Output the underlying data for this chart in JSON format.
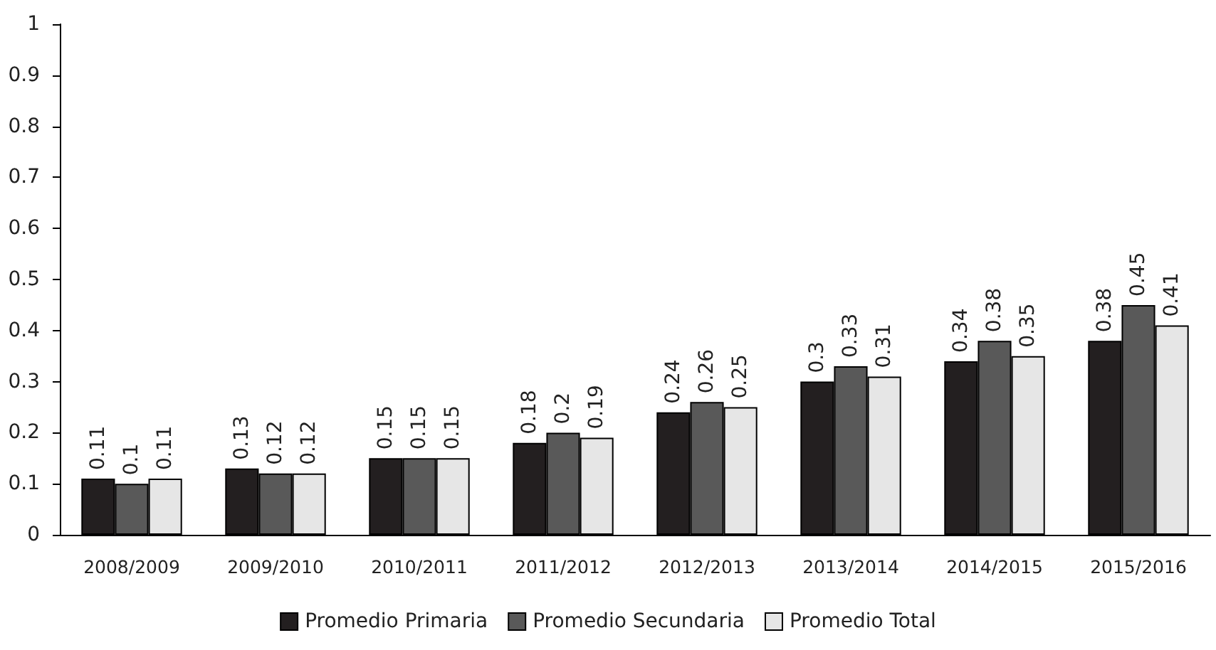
{
  "chart_data": {
    "type": "bar",
    "categories": [
      "2008/2009",
      "2009/2010",
      "2010/2011",
      "2011/2012",
      "2012/2013",
      "2013/2014",
      "2014/2015",
      "2015/2016"
    ],
    "series": [
      {
        "name": "Promedio Primaria",
        "color": "#231f20",
        "values": [
          0.11,
          0.13,
          0.15,
          0.18,
          0.24,
          0.3,
          0.34,
          0.38
        ]
      },
      {
        "name": "Promedio Secundaria",
        "color": "#595959",
        "values": [
          0.1,
          0.12,
          0.15,
          0.2,
          0.26,
          0.33,
          0.38,
          0.45
        ]
      },
      {
        "name": "Promedio Total",
        "color": "#e6e6e6",
        "values": [
          0.11,
          0.12,
          0.15,
          0.19,
          0.25,
          0.31,
          0.35,
          0.41
        ]
      }
    ],
    "ylim": [
      0,
      1
    ],
    "yticks": [
      0,
      0.1,
      0.2,
      0.3,
      0.4,
      0.5,
      0.6,
      0.7,
      0.8,
      0.9,
      1
    ],
    "data_labels": true,
    "grid": false,
    "legend": "bottom"
  }
}
